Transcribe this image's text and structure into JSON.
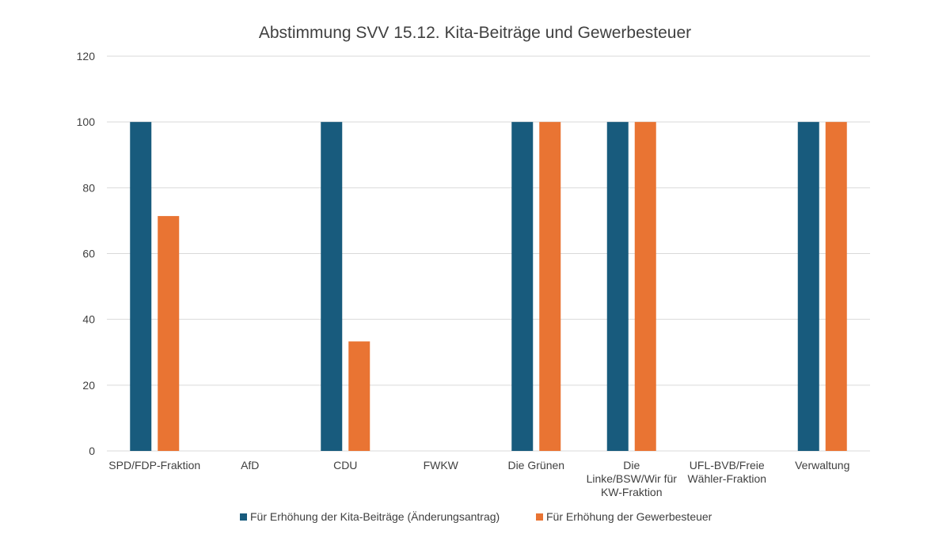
{
  "chart_data": {
    "type": "bar",
    "title": "Abstimmung SVV 15.12.  Kita-Beiträge und Gewerbesteuer",
    "xlabel": "",
    "ylabel": "",
    "ylim": [
      0,
      120
    ],
    "yticks": [
      0,
      20,
      40,
      60,
      80,
      100,
      120
    ],
    "grid": true,
    "legend_position": "bottom",
    "categories": [
      [
        "SPD/FDP-Fraktion"
      ],
      [
        "AfD"
      ],
      [
        "CDU"
      ],
      [
        "FWKW"
      ],
      [
        "Die Grünen"
      ],
      [
        "Die",
        "Linke/BSW/Wir für",
        "KW-Fraktion"
      ],
      [
        "UFL-BVB/Freie",
        "Wähler-Fraktion"
      ],
      [
        "Verwaltung"
      ]
    ],
    "series": [
      {
        "name": "Für Erhöhung der Kita-Beiträge (Änderungsantrag)",
        "color": "#185b7d",
        "values": [
          100,
          0,
          100,
          0,
          100,
          100,
          0,
          100
        ]
      },
      {
        "name": "Für Erhöhung der Gewerbesteuer",
        "color": "#e97433",
        "values": [
          71.4,
          0,
          33.3,
          0,
          100,
          100,
          0,
          100
        ]
      }
    ]
  }
}
